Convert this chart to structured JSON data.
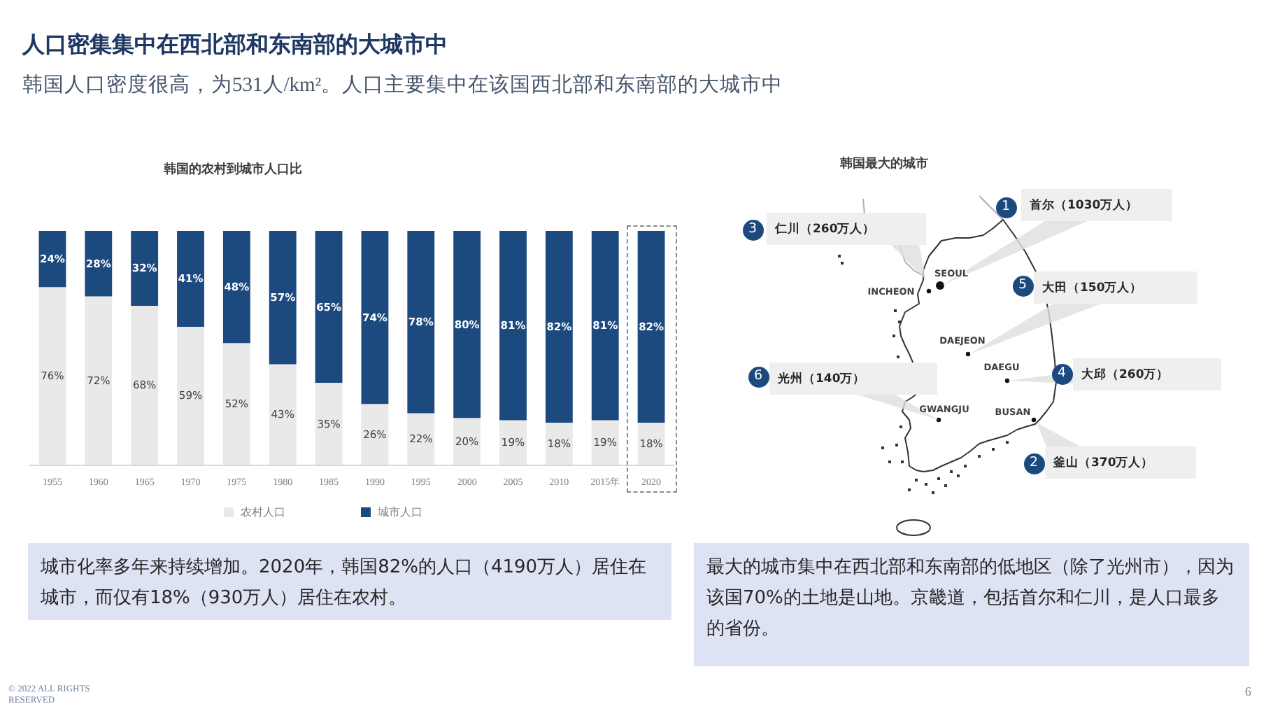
{
  "chart_data": [
    {
      "type": "other",
      "title": "人口密集集中在西北部和东南部的大城市中",
      "subtitle": "韩国人口密度很高，为531人/km²。人口主要集中在该国西北部和东南部的大城市中",
      "annotations": [
        "© 2022 ALL RIGHTS RESERVED",
        "6"
      ]
    },
    {
      "type": "bar",
      "title": "韩国的农村到城市人口比",
      "categories": [
        "1955",
        "1960",
        "1965",
        "1970",
        "1975",
        "1980",
        "1985",
        "1990",
        "1995",
        "2000",
        "2005",
        "2010",
        "2015年",
        "2020"
      ],
      "stacked": true,
      "legend": "bottom",
      "tick_labels": "x",
      "series": [
        {
          "name": "农村人口",
          "color": "#e9e9e9",
          "values": [
            76,
            72,
            68,
            59,
            52,
            43,
            35,
            26,
            22,
            20,
            19,
            18,
            19,
            18
          ],
          "value_labels": [
            "76%",
            "72%",
            "68%",
            "59%",
            "52%",
            "43%",
            "35%",
            "26%",
            "22%",
            "20%",
            "19%",
            "18%",
            "19%",
            "18%"
          ]
        },
        {
          "name": "城市人口",
          "color": "#1c4a7e",
          "values": [
            24,
            28,
            32,
            41,
            48,
            57,
            65,
            74,
            78,
            80,
            81,
            82,
            81,
            82
          ],
          "value_labels": [
            "24%",
            "28%",
            "32%",
            "41%",
            "48%",
            "57%",
            "65%",
            "74%",
            "78%",
            "80%",
            "81%",
            "82%",
            "81%",
            "82%"
          ]
        }
      ],
      "annotations": [
        "城市化率多年来持续增加。2020年，韩国82%的人口（4190万人）居住在城市，而仅有18%（930万人）居住在农村。"
      ]
    },
    {
      "type": "other",
      "title": "韩国最大的城市",
      "annotations": [
        "1",
        "首尔（1030万人）",
        "2",
        "釜山（370万人）",
        "3",
        "仁川（260万人）",
        "4",
        "大邱（260万）",
        "5",
        "大田（150万人）",
        "6",
        "光州（140万）",
        "SEOUL",
        "INCHEON",
        "DAEJEON",
        "DAEGU",
        "GWANGJU",
        "BUSAN",
        "最大的城市集中在西北部和东南部的低地区（除了光州市），因为该国70%的土地是山地。京畿道，包括首尔和仁川，是人口最多的省份。"
      ]
    }
  ]
}
